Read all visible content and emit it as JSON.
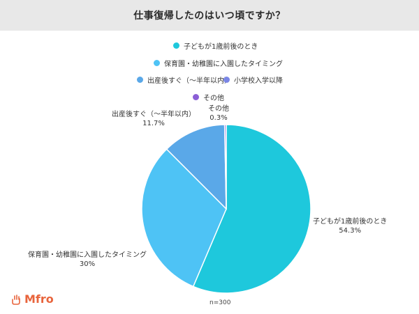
{
  "title": "仕事復帰したのはいつ頃ですか？",
  "note": "n=300",
  "logo_text": "Mfro",
  "chart_data": {
    "type": "pie",
    "title": "仕事復帰したのはいつ頃ですか？",
    "legend_placement": "top",
    "slices": [
      {
        "label": "子どもが1歳前後のとき",
        "value": 54.3,
        "value_label": "54.3%",
        "color": "#1ec8dc"
      },
      {
        "label": "保育園・幼稚園に入園したタイミング",
        "value": 30,
        "value_label": "30%",
        "color": "#4ec3f5"
      },
      {
        "label": "出産後すぐ（〜半年以内）",
        "value": 11.7,
        "value_label": "11.7%",
        "color": "#5aa8e8"
      },
      {
        "label": "小学校入学以降",
        "value": 0,
        "value_label": "",
        "color": "#7a86e6"
      },
      {
        "label": "その他",
        "value": 0.3,
        "value_label": "0.3%",
        "color": "#8b5fd6"
      }
    ]
  }
}
